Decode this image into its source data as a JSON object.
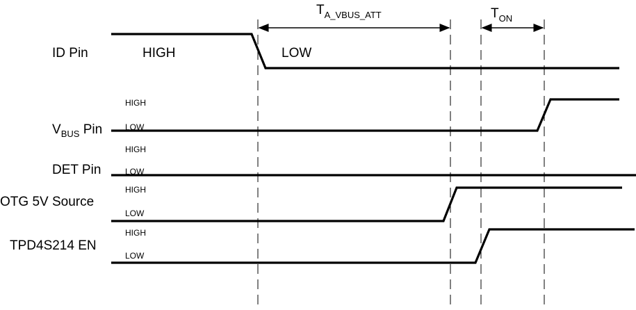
{
  "timings": [
    {
      "symbol": "T",
      "subscript": "A_VBUS_ATT"
    },
    {
      "symbol": "T",
      "subscript": "ON"
    }
  ],
  "signals": [
    {
      "label": "ID Pin",
      "label_sub": "",
      "label_suffix": "",
      "high": "HIGH",
      "low": "LOW"
    },
    {
      "label": "V",
      "label_sub": "BUS",
      "label_suffix": " Pin",
      "high": "HIGH",
      "low": "LOW"
    },
    {
      "label": "DET Pin",
      "label_sub": "",
      "label_suffix": "",
      "high": "HIGH",
      "low": "LOW"
    },
    {
      "label": "OTG 5V Source",
      "label_sub": "",
      "label_suffix": "",
      "high": "HIGH",
      "low": "LOW"
    },
    {
      "label": "TPD4S214 EN",
      "label_sub": "",
      "label_suffix": "",
      "high": "HIGH",
      "low": "LOW"
    }
  ]
}
